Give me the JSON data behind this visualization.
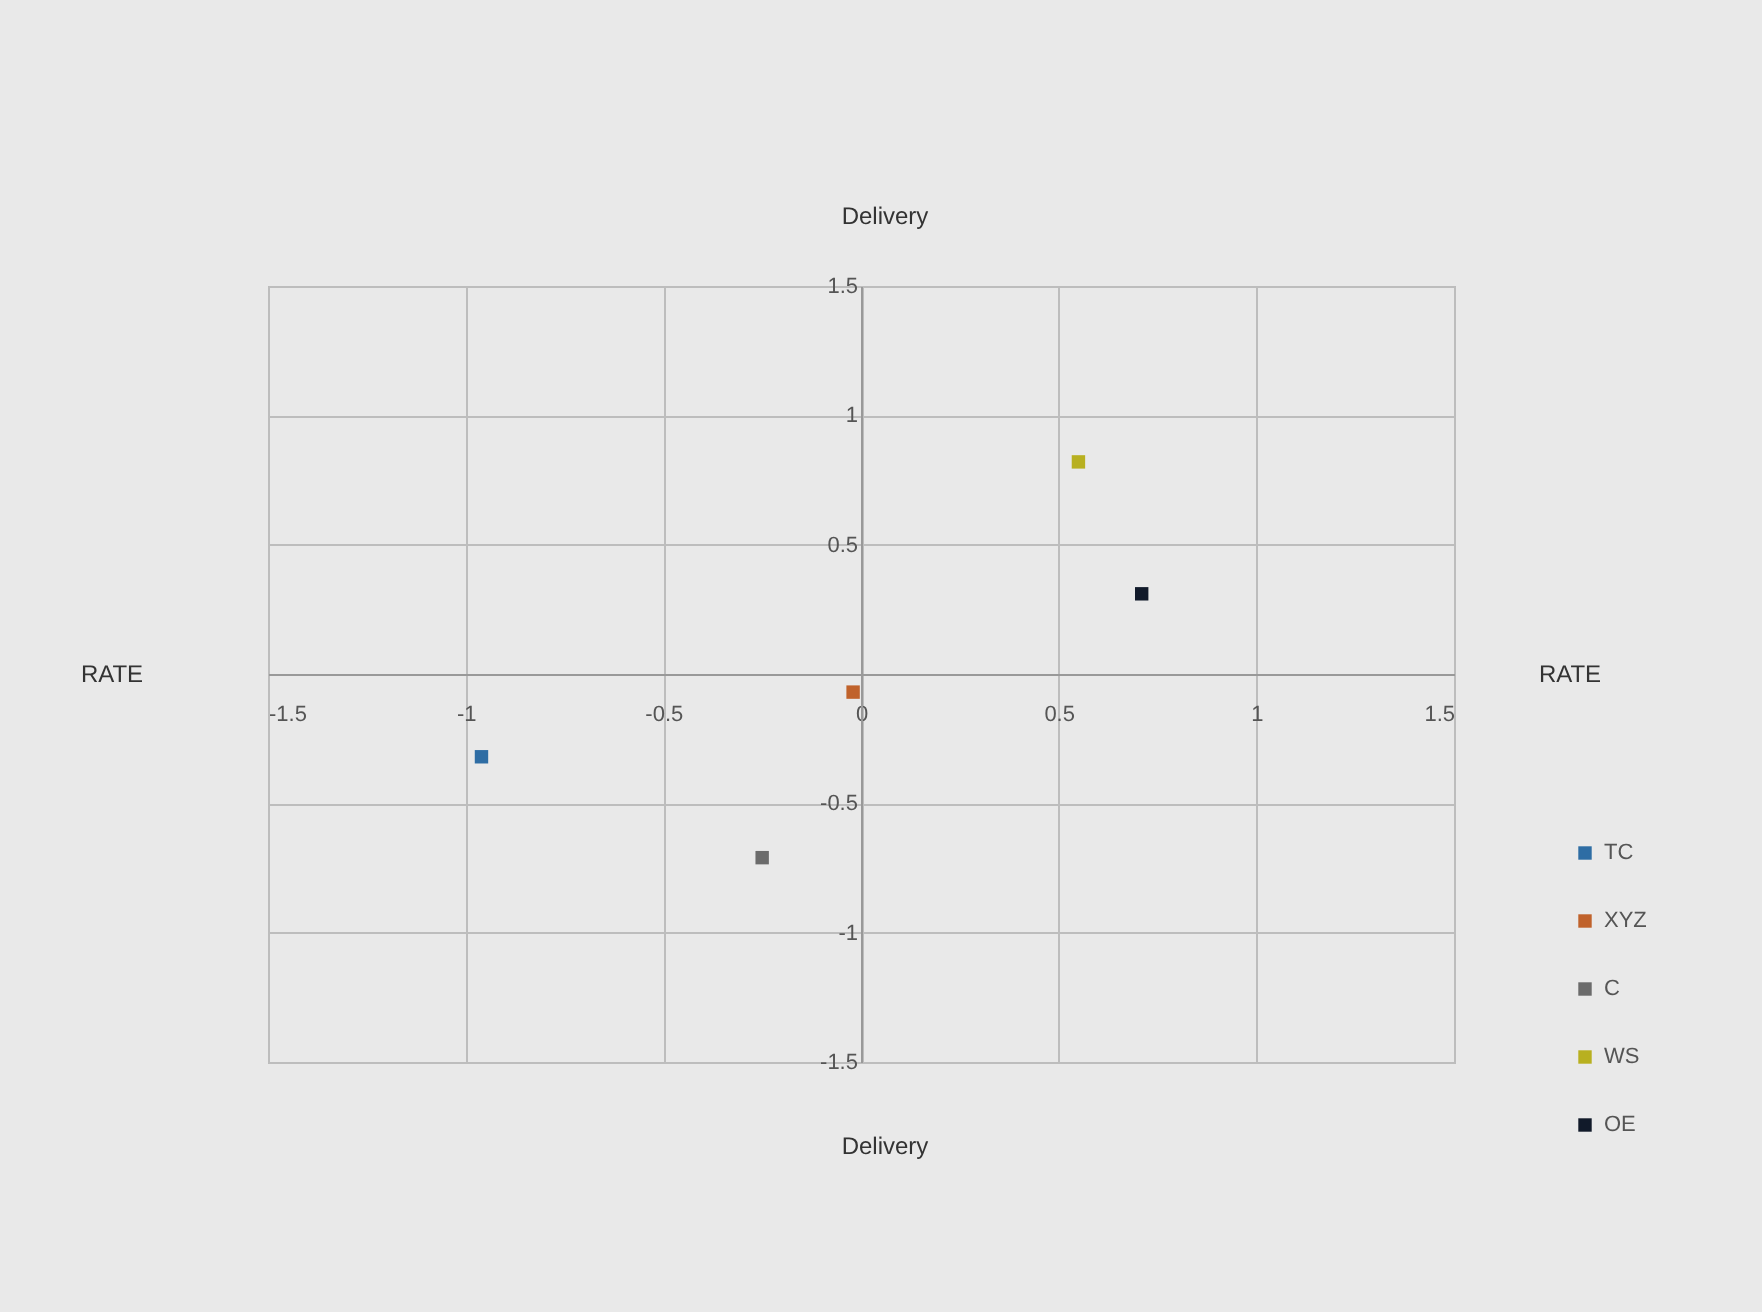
{
  "chart_data": {
    "type": "scatter",
    "ylabel": "Delivery",
    "annotations": [
      "RATE",
      "RATE",
      "Delivery"
    ],
    "series": [
      {
        "name": "TC",
        "color": "#2e6da4",
        "x": [
          -0.96
        ],
        "values": [
          -0.32
        ]
      },
      {
        "name": "XYZ",
        "color": "#c0622b",
        "x": [
          -0.02
        ],
        "values": [
          -0.07
        ]
      },
      {
        "name": "C",
        "color": "#6b6b6b",
        "x": [
          -0.25
        ],
        "values": [
          -0.71
        ]
      },
      {
        "name": "WS",
        "color": "#b8b020",
        "x": [
          0.55
        ],
        "values": [
          0.82
        ]
      },
      {
        "name": "OE",
        "color": "#111a2a",
        "x": [
          0.71
        ],
        "values": [
          0.31
        ]
      }
    ],
    "xlim": [
      -1.5,
      1.5
    ],
    "xticks": [
      -1.5,
      -1,
      -0.5,
      0,
      0.5,
      1,
      1.5
    ],
    "ylim": [
      -1.5,
      1.5
    ],
    "yticks": [
      -1.5,
      -1,
      -0.5,
      {
        "value": 0,
        "label": null
      },
      0.5,
      1,
      1.5
    ],
    "grid": true,
    "legend": "bottom right",
    "marker": "square"
  }
}
